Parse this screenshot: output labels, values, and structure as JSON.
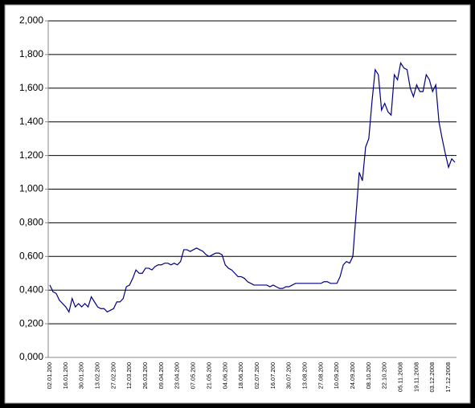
{
  "chart_data": {
    "type": "line",
    "categories": [
      "02.01.200",
      null,
      null,
      null,
      null,
      "16.01.200",
      null,
      null,
      null,
      null,
      "30.01.200",
      null,
      null,
      null,
      null,
      "13.02.200",
      null,
      null,
      null,
      null,
      "27.02.200",
      null,
      null,
      null,
      null,
      "12.03.200",
      null,
      null,
      null,
      null,
      "26.03.200",
      null,
      null,
      null,
      null,
      "09.04.200",
      null,
      null,
      null,
      null,
      "23.04.200",
      null,
      null,
      null,
      null,
      "07.05.200",
      null,
      null,
      null,
      null,
      "21.05.200",
      null,
      null,
      null,
      null,
      "04.06.200",
      null,
      null,
      null,
      null,
      "18.06.200",
      null,
      null,
      null,
      null,
      "02.07.200",
      null,
      null,
      null,
      null,
      "16.07.200",
      null,
      null,
      null,
      null,
      "30.07.200",
      null,
      null,
      null,
      null,
      "13.08.200",
      null,
      null,
      null,
      null,
      "27.08.200",
      null,
      null,
      null,
      null,
      "10.09.200",
      null,
      null,
      null,
      null,
      "24.09.200",
      null,
      null,
      null,
      null,
      "08.10.200",
      null,
      null,
      null,
      null,
      "22.10.200",
      null,
      null,
      null,
      null,
      "05.11.2008",
      null,
      null,
      null,
      null,
      "19.11.2008",
      null,
      null,
      null,
      null,
      "03.12.2008",
      null,
      null,
      null,
      null,
      "17.12.2008",
      null,
      null
    ],
    "series": [
      {
        "color": "#000080",
        "values": [
          0.43,
          0.39,
          0.38,
          0.34,
          0.32,
          0.3,
          0.27,
          0.35,
          0.3,
          0.32,
          0.3,
          0.32,
          0.3,
          0.36,
          0.33,
          0.3,
          0.29,
          0.29,
          0.27,
          0.28,
          0.29,
          0.33,
          0.33,
          0.35,
          0.42,
          0.43,
          0.47,
          0.52,
          0.5,
          0.5,
          0.53,
          0.53,
          0.52,
          0.54,
          0.55,
          0.55,
          0.56,
          0.56,
          0.55,
          0.56,
          0.55,
          0.57,
          0.64,
          0.64,
          0.63,
          0.64,
          0.65,
          0.64,
          0.63,
          0.61,
          0.6,
          0.61,
          0.62,
          0.62,
          0.61,
          0.55,
          0.53,
          0.52,
          0.5,
          0.48,
          0.48,
          0.47,
          0.45,
          0.44,
          0.43,
          0.43,
          0.43,
          0.43,
          0.43,
          0.42,
          0.43,
          0.42,
          0.41,
          0.41,
          0.42,
          0.42,
          0.43,
          0.44,
          0.44,
          0.44,
          0.44,
          0.44,
          0.44,
          0.44,
          0.44,
          0.44,
          0.45,
          0.45,
          0.44,
          0.44,
          0.44,
          0.48,
          0.55,
          0.57,
          0.56,
          0.6,
          0.85,
          1.1,
          1.05,
          1.25,
          1.3,
          1.52,
          1.71,
          1.68,
          1.47,
          1.51,
          1.46,
          1.44,
          1.68,
          1.65,
          1.75,
          1.72,
          1.71,
          1.6,
          1.55,
          1.62,
          1.58,
          1.58,
          1.68,
          1.65,
          1.58,
          1.62,
          1.4,
          1.3,
          1.21,
          1.13,
          1.18,
          1.16
        ]
      }
    ],
    "ylim": [
      0,
      2
    ],
    "yticks": [
      {
        "value": 0,
        "label": "0,000"
      },
      {
        "value": 0.2,
        "label": "0,200"
      },
      {
        "value": 0.4,
        "label": "0,400"
      },
      {
        "value": 0.6,
        "label": "0,600"
      },
      {
        "value": 0.8,
        "label": "0,800"
      },
      {
        "value": 1,
        "label": "1,000"
      },
      {
        "value": 1.2,
        "label": "1,200"
      },
      {
        "value": 1.4,
        "label": "1,400"
      },
      {
        "value": 1.6,
        "label": "1,600"
      },
      {
        "value": 1.8,
        "label": "1,800"
      },
      {
        "value": 2,
        "label": "2,000"
      }
    ],
    "grid": true
  }
}
